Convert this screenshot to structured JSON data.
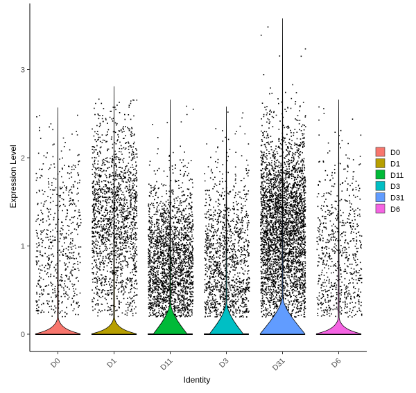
{
  "chart_data": {
    "type": "violin",
    "title": "",
    "xlabel": "Identity",
    "ylabel": "Expression Level",
    "ylim": [
      -0.2,
      3.65
    ],
    "yticks": [
      0,
      1,
      2,
      3
    ],
    "grid": false,
    "legend_position": "right",
    "jitter_points": true,
    "categories": [
      "D0",
      "D1",
      "D11",
      "D3",
      "D31",
      "D6"
    ],
    "series": [
      {
        "name": "D0",
        "color": "#F8766D",
        "max": 2.57,
        "zero_fraction": 0.9,
        "n_points": 600
      },
      {
        "name": "D1",
        "color": "#B79F00",
        "max": 2.81,
        "zero_fraction": 0.9,
        "n_points": 1700
      },
      {
        "name": "D11",
        "color": "#00BA38",
        "max": 2.66,
        "zero_fraction": 0.8,
        "n_points": 2200
      },
      {
        "name": "D3",
        "color": "#00BFC4",
        "max": 2.58,
        "zero_fraction": 0.85,
        "n_points": 1300
      },
      {
        "name": "D31",
        "color": "#619CFF",
        "max": 3.58,
        "zero_fraction": 0.6,
        "n_points": 5500
      },
      {
        "name": "D6",
        "color": "#F564E3",
        "max": 2.66,
        "zero_fraction": 0.9,
        "n_points": 700
      }
    ]
  }
}
